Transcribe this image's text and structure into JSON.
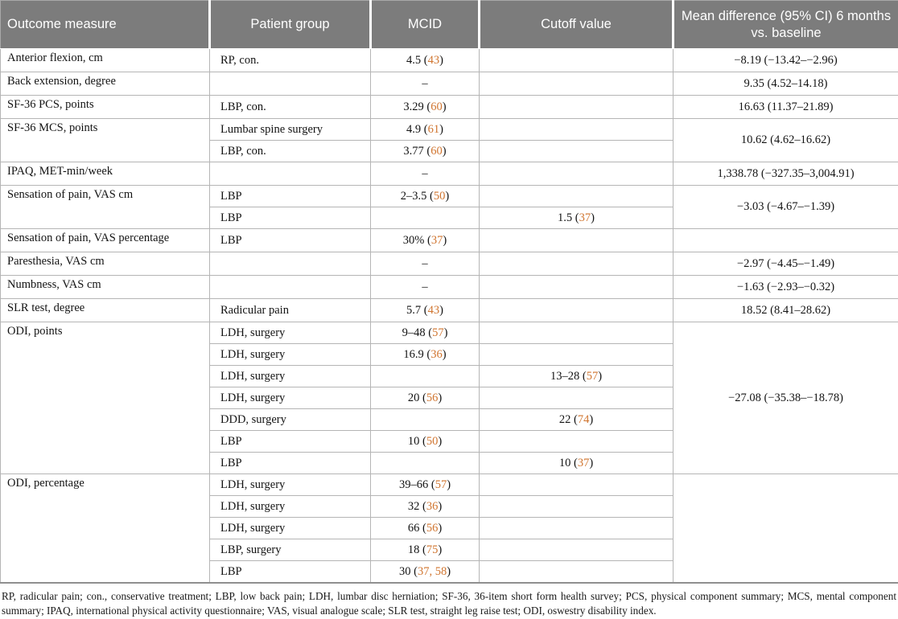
{
  "table": {
    "header_bg": "#7c7c7c",
    "accent_color": "#d0742e",
    "columns": [
      "Outcome measure",
      "Patient group",
      "MCID",
      "Cutoff value",
      "Mean difference (95% CI) 6 months vs. baseline"
    ],
    "rows": [
      {
        "outcome": "Anterior flexion, cm",
        "outcome_span": 1,
        "group": "RP, con.",
        "mcid": "4.5 (43)",
        "cutoff": "",
        "mean": "−8.19 (−13.42–−2.96)",
        "mean_span": 1
      },
      {
        "outcome": "Back extension, degree",
        "outcome_span": 1,
        "group": "",
        "mcid": "–",
        "cutoff": "",
        "mean": "9.35 (4.52–14.18)",
        "mean_span": 1
      },
      {
        "outcome": "SF-36 PCS, points",
        "outcome_span": 1,
        "group": "LBP, con.",
        "mcid": "3.29 (60)",
        "cutoff": "",
        "mean": "16.63 (11.37–21.89)",
        "mean_span": 1
      },
      {
        "outcome": "SF-36 MCS, points",
        "outcome_span": 2,
        "group": "Lumbar spine surgery",
        "mcid": "4.9 (61)",
        "cutoff": "",
        "mean": "10.62 (4.62–16.62)",
        "mean_span": 2
      },
      {
        "group": "LBP, con.",
        "mcid": "3.77 (60)",
        "cutoff": ""
      },
      {
        "outcome": "IPAQ, MET-min/week",
        "outcome_span": 1,
        "group": "",
        "mcid": "–",
        "cutoff": "",
        "mean": "1,338.78 (−327.35–3,004.91)",
        "mean_span": 1
      },
      {
        "outcome": "Sensation of pain, VAS cm",
        "outcome_span": 2,
        "group": "LBP",
        "mcid": "2–3.5 (50)",
        "cutoff": "",
        "mean": "−3.03 (−4.67–−1.39)",
        "mean_span": 2
      },
      {
        "group": "LBP",
        "mcid": "",
        "cutoff": "1.5 (37)"
      },
      {
        "outcome": "Sensation of pain, VAS percentage",
        "outcome_span": 1,
        "group": "LBP",
        "mcid": "30% (37)",
        "cutoff": "",
        "mean": "",
        "mean_span": 1
      },
      {
        "outcome": "Paresthesia, VAS cm",
        "outcome_span": 1,
        "group": "",
        "mcid": "–",
        "cutoff": "",
        "mean": "−2.97 (−4.45–−1.49)",
        "mean_span": 1
      },
      {
        "outcome": "Numbness, VAS cm",
        "outcome_span": 1,
        "group": "",
        "mcid": "–",
        "cutoff": "",
        "mean": "−1.63 (−2.93–−0.32)",
        "mean_span": 1
      },
      {
        "outcome": "SLR test, degree",
        "outcome_span": 1,
        "group": "Radicular pain",
        "mcid": "5.7 (43)",
        "cutoff": "",
        "mean": "18.52 (8.41–28.62)",
        "mean_span": 1
      },
      {
        "outcome": "ODI, points",
        "outcome_span": 7,
        "group": "LDH, surgery",
        "mcid": "9–48 (57)",
        "cutoff": "",
        "mean": "−27.08 (−35.38–−18.78)",
        "mean_span": 7
      },
      {
        "group": "LDH, surgery",
        "mcid": "16.9 (36)",
        "cutoff": ""
      },
      {
        "group": "LDH, surgery",
        "mcid": "",
        "cutoff": "13–28 (57)"
      },
      {
        "group": "LDH, surgery",
        "mcid": "20 (56)",
        "cutoff": ""
      },
      {
        "group": "DDD, surgery",
        "mcid": "",
        "cutoff": "22 (74)"
      },
      {
        "group": "LBP",
        "mcid": "10 (50)",
        "cutoff": ""
      },
      {
        "group": "LBP",
        "mcid": "",
        "cutoff": "10 (37)"
      },
      {
        "outcome": "ODI, percentage",
        "outcome_span": 5,
        "group": "LDH, surgery",
        "mcid": "39–66 (57)",
        "cutoff": "",
        "mean": "",
        "mean_span": 5
      },
      {
        "group": "LDH, surgery",
        "mcid": "32 (36)",
        "cutoff": ""
      },
      {
        "group": "LDH, surgery",
        "mcid": "66 (56)",
        "cutoff": ""
      },
      {
        "group": "LBP, surgery",
        "mcid": "18 (75)",
        "cutoff": ""
      },
      {
        "group": "LBP",
        "mcid": "30 (37, 58)",
        "cutoff": ""
      }
    ]
  },
  "footnote": "RP, radicular pain; con., conservative treatment; LBP, low back pain; LDH, lumbar disc herniation; SF-36, 36-item short form health survey; PCS, physical component summary; MCS, mental component summary; IPAQ, international physical activity questionnaire; VAS, visual analogue scale; SLR test, straight leg raise test; ODI, oswestry disability index."
}
